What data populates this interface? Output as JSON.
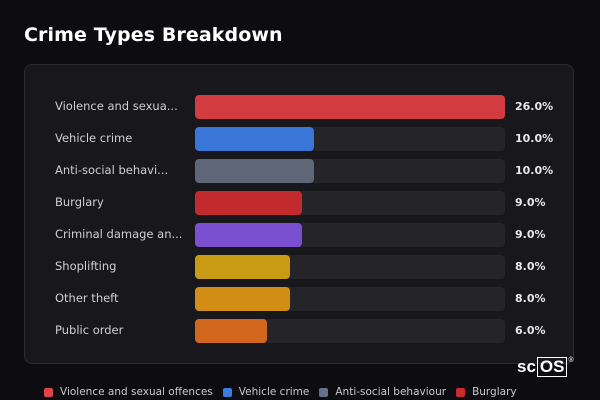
{
  "chart_data": {
    "type": "bar",
    "orientation": "horizontal",
    "title": "Crime Types Breakdown",
    "value_format": "percent",
    "xlim": [
      0,
      26
    ],
    "categories": [
      "Violence and sexua...",
      "Vehicle crime",
      "Anti-social behavi...",
      "Burglary",
      "Criminal damage an...",
      "Shoplifting",
      "Other theft",
      "Public order"
    ],
    "values": [
      26.0,
      10.0,
      10.0,
      9.0,
      9.0,
      8.0,
      8.0,
      6.0
    ],
    "value_labels": [
      "26.0%",
      "10.0%",
      "10.0%",
      "9.0%",
      "9.0%",
      "8.0%",
      "8.0%",
      "6.0%"
    ],
    "colors": [
      "#d23b3f",
      "#3a76d8",
      "#5f6678",
      "#c22a2d",
      "#7a4fd0",
      "#c99b14",
      "#d18d14",
      "#d1661c"
    ],
    "legend": [
      {
        "label": "Violence and sexual offences",
        "color": "#e04448"
      },
      {
        "label": "Vehicle crime",
        "color": "#3a7ee0"
      },
      {
        "label": "Anti-social behaviour",
        "color": "#66708a"
      },
      {
        "label": "Burglary",
        "color": "#cc2b2e"
      }
    ],
    "legend_position": "bottom",
    "grid": false
  },
  "brand": {
    "prefix": "sc",
    "boxed": "OS",
    "reg": "®"
  }
}
